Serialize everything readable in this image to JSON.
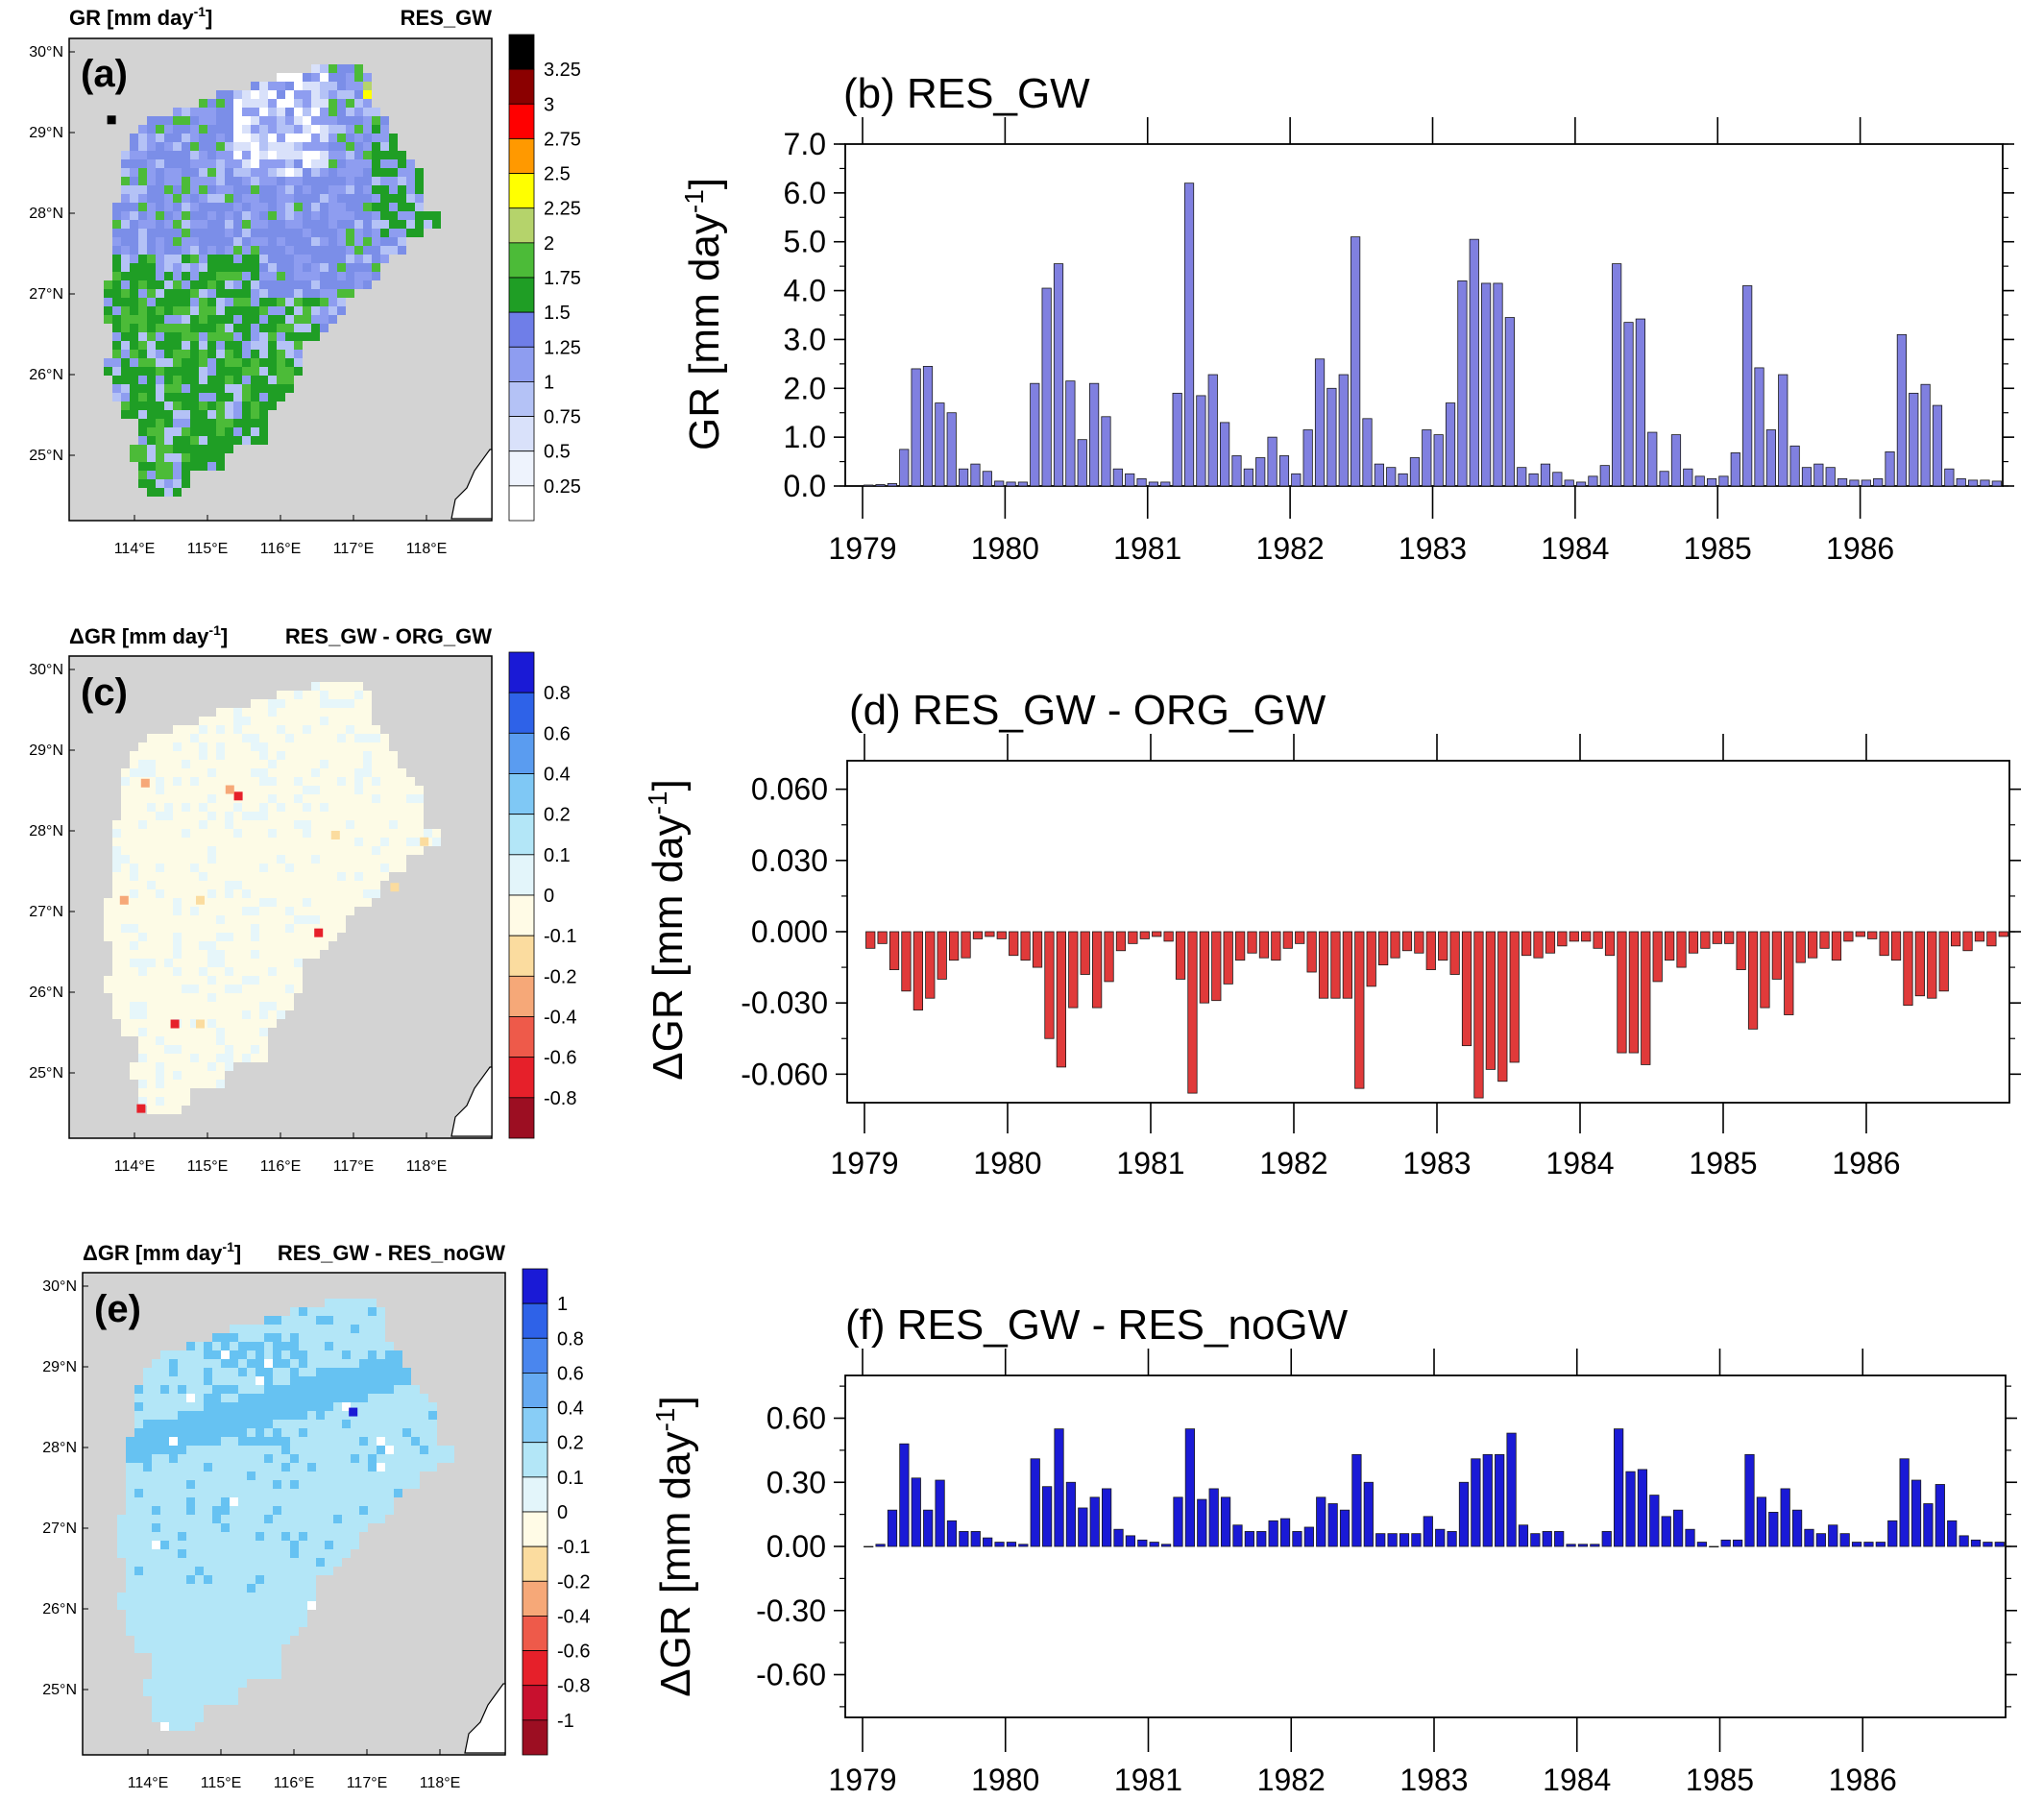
{
  "colors": {
    "map_background": "#d3d3d3",
    "res_gw_bar": "#8080e0",
    "diff_org_bar": "#e03a3a",
    "diff_nogw_bar": "#1a1ad6"
  },
  "maps": [
    {
      "id": "a",
      "panel_label": "(a)",
      "title_left": "GR [mm day",
      "title_left_exp": "-1",
      "title_left_end": "]",
      "title_right": "RES_GW",
      "lat_labels": [
        "30°N",
        "29°N",
        "28°N",
        "27°N",
        "26°N",
        "25°N"
      ],
      "lon_labels": [
        "114°E",
        "115°E",
        "116°E",
        "117°E",
        "118°E"
      ],
      "colorbar_labels": [
        "3.25",
        "3",
        "2.75",
        "2.5",
        "2.25",
        "2",
        "1.75",
        "1.5",
        "1.25",
        "1",
        "0.75",
        "0.5",
        "0.25"
      ],
      "colorbar_colors": [
        "#000000",
        "#8b0000",
        "#ff0000",
        "#ff9900",
        "#ffff00",
        "#b5d36b",
        "#4cbb38",
        "#1f9e25",
        "#6f7ee8",
        "#8e9df0",
        "#b4c2f6",
        "#d9e1fa",
        "#eef3fd",
        "#ffffff"
      ],
      "dominant_palette": [
        "#7b8ee8",
        "#8e9df0",
        "#2aa02a",
        "#6f7ee8",
        "#b4c2f6",
        "#1f9e25",
        "#4cbb38"
      ]
    },
    {
      "id": "c",
      "panel_label": "(c)",
      "title_left": "ΔGR [mm day",
      "title_left_exp": "-1",
      "title_left_end": "]",
      "title_right": "RES_GW - ORG_GW",
      "lat_labels": [
        "30°N",
        "29°N",
        "28°N",
        "27°N",
        "26°N",
        "25°N"
      ],
      "lon_labels": [
        "114°E",
        "115°E",
        "116°E",
        "117°E",
        "118°E"
      ],
      "colorbar_labels": [
        "0.8",
        "0.6",
        "0.4",
        "0.2",
        "0.1",
        "0",
        "-0.1",
        "-0.2",
        "-0.4",
        "-0.6",
        "-0.8"
      ],
      "colorbar_colors": [
        "#1a1ad6",
        "#2e62e8",
        "#5a9cf0",
        "#7fc8f5",
        "#b3e6f7",
        "#e3f5fa",
        "#fffbe6",
        "#fbdc9f",
        "#f6a878",
        "#ee5a4a",
        "#e6202a",
        "#9c0e22"
      ],
      "dominant_palette": [
        "#fdfbe6",
        "#fdfbe6",
        "#fdfbe6",
        "#e6f6fa",
        "#fdfbe6"
      ]
    },
    {
      "id": "e",
      "panel_label": "(e)",
      "title_left": "ΔGR [mm day",
      "title_left_exp": "-1",
      "title_left_end": "]",
      "title_right": "RES_GW - RES_noGW",
      "lat_labels": [
        "30°N",
        "29°N",
        "28°N",
        "27°N",
        "26°N",
        "25°N"
      ],
      "lon_labels": [
        "114°E",
        "115°E",
        "116°E",
        "117°E",
        "118°E"
      ],
      "colorbar_labels": [
        "1",
        "0.8",
        "0.6",
        "0.4",
        "0.2",
        "0.1",
        "0",
        "-0.1",
        "-0.2",
        "-0.4",
        "-0.6",
        "-0.8",
        "-1"
      ],
      "colorbar_colors": [
        "#1a1ad6",
        "#2e62e8",
        "#4a86ee",
        "#66aaf2",
        "#88cdf6",
        "#b3e6f7",
        "#e3f5fa",
        "#fffbe6",
        "#fbdc9f",
        "#f6a878",
        "#ee5a4a",
        "#e6202a",
        "#c8102e",
        "#9c0e22"
      ],
      "dominant_palette": [
        "#b3e6f7",
        "#b3e6f7",
        "#88cdf6",
        "#b3e6f7",
        "#66aaf2"
      ]
    }
  ],
  "chart_data": [
    {
      "id": "b",
      "type": "bar",
      "title": "(b) RES_GW",
      "ylabel": "GR [mm day",
      "ylabel_exp": "-1",
      "ylabel_end": "]",
      "ylim": [
        0,
        7
      ],
      "yticks": [
        "0.0",
        "1.0",
        "2.0",
        "3.0",
        "4.0",
        "5.0",
        "6.0",
        "7.0"
      ],
      "ytick_values": [
        0,
        1,
        2,
        3,
        4,
        5,
        6,
        7
      ],
      "xticks": [
        "1979",
        "1980",
        "1981",
        "1982",
        "1983",
        "1984",
        "1985",
        "1986"
      ],
      "grid": false,
      "values": [
        0.02,
        0.03,
        0.05,
        0.75,
        2.4,
        2.45,
        1.7,
        1.5,
        0.35,
        0.45,
        0.3,
        0.1,
        0.08,
        0.08,
        2.1,
        4.05,
        4.55,
        2.15,
        0.95,
        2.1,
        1.42,
        0.35,
        0.25,
        0.15,
        0.08,
        0.08,
        1.9,
        6.2,
        1.85,
        2.28,
        1.3,
        0.62,
        0.35,
        0.58,
        1.0,
        0.62,
        0.25,
        1.15,
        2.6,
        2.0,
        2.28,
        5.1,
        1.38,
        0.45,
        0.38,
        0.25,
        0.58,
        1.15,
        1.05,
        1.7,
        4.2,
        5.05,
        4.15,
        4.15,
        3.45,
        0.38,
        0.25,
        0.45,
        0.28,
        0.12,
        0.08,
        0.2,
        0.42,
        4.55,
        3.35,
        3.42,
        1.1,
        0.3,
        1.05,
        0.35,
        0.2,
        0.15,
        0.2,
        0.68,
        4.1,
        2.42,
        1.15,
        2.28,
        0.82,
        0.38,
        0.45,
        0.38,
        0.15,
        0.12,
        0.12,
        0.15,
        0.7,
        3.1,
        1.9,
        2.08,
        1.65,
        0.35,
        0.15,
        0.12,
        0.12,
        0.1
      ]
    },
    {
      "id": "d",
      "type": "bar",
      "title": "(d) RES_GW - ORG_GW",
      "ylabel": "ΔGR [mm day",
      "ylabel_exp": "-1",
      "ylabel_end": "]",
      "ylim": [
        -0.072,
        0.072
      ],
      "yticks": [
        "0.060",
        "0.030",
        "0.000",
        "-0.030",
        "-0.060"
      ],
      "ytick_values": [
        0.06,
        0.03,
        0.0,
        -0.03,
        -0.06
      ],
      "xticks": [
        "1979",
        "1980",
        "1981",
        "1982",
        "1983",
        "1984",
        "1985",
        "1986"
      ],
      "grid": false,
      "values": [
        -0.007,
        -0.005,
        -0.016,
        -0.025,
        -0.033,
        -0.028,
        -0.02,
        -0.012,
        -0.011,
        -0.003,
        -0.002,
        -0.003,
        -0.01,
        -0.012,
        -0.015,
        -0.045,
        -0.057,
        -0.032,
        -0.018,
        -0.032,
        -0.021,
        -0.008,
        -0.005,
        -0.003,
        -0.002,
        -0.004,
        -0.02,
        -0.068,
        -0.03,
        -0.029,
        -0.022,
        -0.012,
        -0.009,
        -0.011,
        -0.012,
        -0.007,
        -0.005,
        -0.017,
        -0.028,
        -0.028,
        -0.028,
        -0.066,
        -0.023,
        -0.014,
        -0.011,
        -0.008,
        -0.009,
        -0.016,
        -0.012,
        -0.018,
        -0.048,
        -0.07,
        -0.058,
        -0.063,
        -0.055,
        -0.01,
        -0.011,
        -0.009,
        -0.006,
        -0.004,
        -0.004,
        -0.007,
        -0.01,
        -0.051,
        -0.051,
        -0.056,
        -0.021,
        -0.012,
        -0.015,
        -0.009,
        -0.007,
        -0.005,
        -0.005,
        -0.016,
        -0.041,
        -0.032,
        -0.02,
        -0.035,
        -0.013,
        -0.011,
        -0.007,
        -0.012,
        -0.004,
        -0.002,
        -0.003,
        -0.01,
        -0.012,
        -0.031,
        -0.027,
        -0.028,
        -0.025,
        -0.006,
        -0.008,
        -0.004,
        -0.006,
        -0.002
      ]
    },
    {
      "id": "f",
      "type": "bar",
      "title": "(f) RES_GW - RES_noGW",
      "ylabel": "ΔGR [mm day",
      "ylabel_exp": "-1",
      "ylabel_end": "]",
      "ylim": [
        -0.8,
        0.8
      ],
      "yticks": [
        "0.60",
        "0.30",
        "0.00",
        "-0.30",
        "-0.60"
      ],
      "ytick_values": [
        0.6,
        0.3,
        0.0,
        -0.3,
        -0.6
      ],
      "xticks": [
        "1979",
        "1980",
        "1981",
        "1982",
        "1983",
        "1984",
        "1985",
        "1986"
      ],
      "grid": false,
      "values": [
        0.0,
        0.01,
        0.17,
        0.48,
        0.32,
        0.17,
        0.31,
        0.12,
        0.07,
        0.07,
        0.04,
        0.02,
        0.02,
        0.01,
        0.41,
        0.28,
        0.55,
        0.3,
        0.18,
        0.23,
        0.27,
        0.08,
        0.05,
        0.03,
        0.02,
        0.01,
        0.23,
        0.55,
        0.22,
        0.27,
        0.23,
        0.1,
        0.07,
        0.07,
        0.12,
        0.13,
        0.07,
        0.09,
        0.23,
        0.2,
        0.17,
        0.43,
        0.3,
        0.06,
        0.06,
        0.06,
        0.06,
        0.14,
        0.08,
        0.07,
        0.3,
        0.41,
        0.43,
        0.43,
        0.53,
        0.1,
        0.06,
        0.07,
        0.07,
        0.01,
        0.01,
        0.01,
        0.07,
        0.55,
        0.35,
        0.36,
        0.24,
        0.14,
        0.17,
        0.08,
        0.02,
        0.0,
        0.03,
        0.03,
        0.43,
        0.23,
        0.16,
        0.27,
        0.17,
        0.08,
        0.06,
        0.1,
        0.06,
        0.02,
        0.02,
        0.02,
        0.12,
        0.41,
        0.31,
        0.2,
        0.29,
        0.12,
        0.05,
        0.03,
        0.02,
        0.02
      ]
    }
  ]
}
